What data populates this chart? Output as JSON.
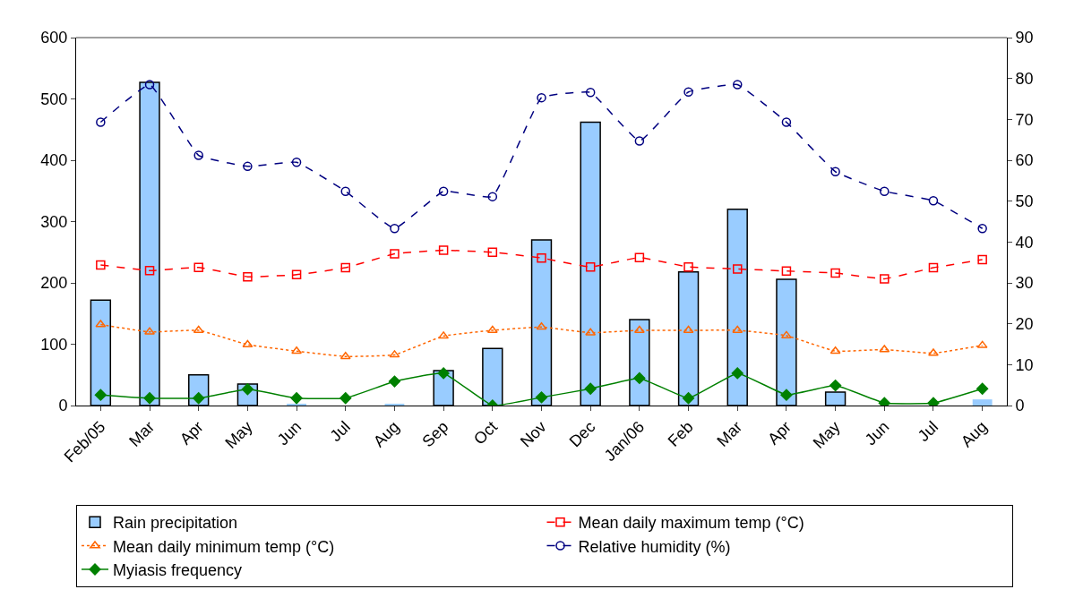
{
  "chart_data": {
    "type": "bar",
    "categories": [
      "Feb/05",
      "Mar",
      "Apr",
      "May",
      "Jun",
      "Jul",
      "Aug",
      "Sep",
      "Oct",
      "Nov",
      "Dec",
      "Jan/06",
      "Feb",
      "Mar",
      "Apr",
      "May",
      "Jun",
      "Jul",
      "Aug"
    ],
    "series": [
      {
        "name": "Rain precipitation",
        "color": "#99ccff",
        "values": [
          172,
          527,
          50,
          35,
          3,
          0,
          3,
          57,
          93,
          270,
          462,
          140,
          218,
          320,
          206,
          22,
          0,
          0,
          10
        ]
      },
      {
        "name": "Mean daily maximum temp (°C)",
        "type": "line",
        "axis": "y2",
        "color": "#ff0000",
        "marker": "square",
        "line_style": "dashed",
        "values": [
          34.4,
          33.0,
          33.8,
          31.5,
          32.0,
          33.7,
          37.1,
          38.0,
          37.5,
          36.1,
          33.9,
          36.2,
          33.9,
          33.4,
          32.9,
          32.4,
          31.0,
          33.7,
          35.7
        ]
      },
      {
        "name": "Mean daily minimum temp (°C)",
        "type": "line",
        "axis": "y2",
        "color": "#ff6600",
        "marker": "triangle",
        "line_style": "dotted",
        "values": [
          19.8,
          18.0,
          18.4,
          14.9,
          13.3,
          12.0,
          12.4,
          17.0,
          18.4,
          19.2,
          17.8,
          18.4,
          18.4,
          18.4,
          17.1,
          13.3,
          13.7,
          12.8,
          14.7
        ]
      },
      {
        "name": "Relative humidity (%)",
        "type": "line",
        "axis": "y2",
        "color": "#000080",
        "marker": "circle",
        "line_style": "dashed",
        "values": [
          69.3,
          78.5,
          61.2,
          58.5,
          59.5,
          52.4,
          43.3,
          52.4,
          51.1,
          75.3,
          76.6,
          64.7,
          76.7,
          78.5,
          69.3,
          57.2,
          52.4,
          50.1,
          43.3
        ]
      },
      {
        "name": "Myiasis frequency",
        "type": "line",
        "axis": "y2",
        "color": "#008000",
        "marker": "diamond",
        "line_style": "solid",
        "values": [
          2.6,
          1.8,
          1.8,
          4.0,
          1.8,
          1.8,
          5.9,
          7.9,
          0,
          2.0,
          4.1,
          6.7,
          1.8,
          7.9,
          2.6,
          4.9,
          0.6,
          0.6,
          4.1
        ]
      }
    ],
    "ylim": [
      0,
      600
    ],
    "yticks": [
      0,
      100,
      200,
      300,
      400,
      500,
      600
    ],
    "y2lim": [
      0,
      90
    ],
    "y2ticks": [
      0,
      10,
      20,
      30,
      40,
      50,
      60,
      70,
      80,
      90
    ],
    "grid": false,
    "legend": "bottom"
  }
}
